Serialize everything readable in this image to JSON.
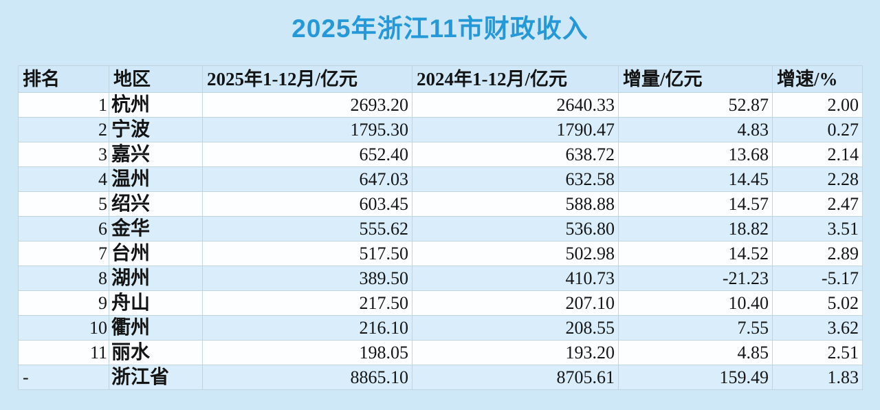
{
  "title": "2025年浙江11市财政收入",
  "colors": {
    "page_bg": "#cfe8f7",
    "header_bg": "#d0e8f7",
    "row_white": "#fdfeff",
    "row_blue": "#d9edfa",
    "border": "#bfd4de",
    "title": "#2599d8",
    "text": "#141414"
  },
  "chart_data": {
    "type": "table",
    "title": "2025年浙江11市财政收入",
    "columns": [
      "排名",
      "地区",
      "2025年1-12月/亿元",
      "2024年1-12月/亿元",
      "增量/亿元",
      "增速/%"
    ],
    "rows": [
      [
        "1",
        "杭州",
        "2693.20",
        "2640.33",
        "52.87",
        "2.00"
      ],
      [
        "2",
        "宁波",
        "1795.30",
        "1790.47",
        "4.83",
        "0.27"
      ],
      [
        "3",
        "嘉兴",
        "652.40",
        "638.72",
        "13.68",
        "2.14"
      ],
      [
        "4",
        "温州",
        "647.03",
        "632.58",
        "14.45",
        "2.28"
      ],
      [
        "5",
        "绍兴",
        "603.45",
        "588.88",
        "14.57",
        "2.47"
      ],
      [
        "6",
        "金华",
        "555.62",
        "536.80",
        "18.82",
        "3.51"
      ],
      [
        "7",
        "台州",
        "517.50",
        "502.98",
        "14.52",
        "2.89"
      ],
      [
        "8",
        "湖州",
        "389.50",
        "410.73",
        "-21.23",
        "-5.17"
      ],
      [
        "9",
        "舟山",
        "217.50",
        "207.10",
        "10.40",
        "5.02"
      ],
      [
        "10",
        "衢州",
        "216.10",
        "208.55",
        "7.55",
        "3.62"
      ],
      [
        "11",
        "丽水",
        "198.05",
        "193.20",
        "4.85",
        "2.51"
      ],
      [
        "-",
        "浙江省",
        "8865.10",
        "8705.61",
        "159.49",
        "1.83"
      ]
    ]
  }
}
